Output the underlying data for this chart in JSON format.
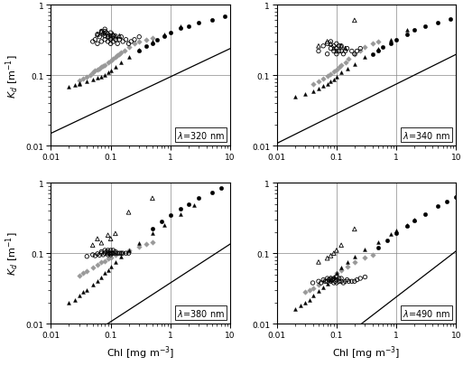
{
  "wavelengths": [
    "320",
    "340",
    "380",
    "490"
  ],
  "xlim": [
    0.01,
    10
  ],
  "ylim": [
    0.01,
    1
  ],
  "fit_params": {
    "320": {
      "a": 0.095,
      "b": 0.4
    },
    "340": {
      "a": 0.075,
      "b": 0.42
    },
    "380": {
      "a": 0.038,
      "b": 0.55
    },
    "490": {
      "a": 0.024,
      "b": 0.65
    }
  },
  "scatter": {
    "320": {
      "open_circles": {
        "x": [
          0.05,
          0.055,
          0.06,
          0.06,
          0.065,
          0.07,
          0.07,
          0.07,
          0.075,
          0.08,
          0.08,
          0.08,
          0.08,
          0.085,
          0.09,
          0.09,
          0.09,
          0.1,
          0.1,
          0.1,
          0.1,
          0.11,
          0.11,
          0.12,
          0.12,
          0.13,
          0.14,
          0.15,
          0.16,
          0.18,
          0.2,
          0.22,
          0.25,
          0.3
        ],
        "y": [
          0.3,
          0.32,
          0.28,
          0.38,
          0.35,
          0.3,
          0.4,
          0.42,
          0.38,
          0.32,
          0.36,
          0.42,
          0.45,
          0.4,
          0.3,
          0.35,
          0.38,
          0.28,
          0.32,
          0.36,
          0.4,
          0.3,
          0.36,
          0.32,
          0.36,
          0.28,
          0.32,
          0.35,
          0.3,
          0.32,
          0.28,
          0.3,
          0.32,
          0.35
        ]
      },
      "open_triangles": {
        "x": [
          0.06,
          0.07,
          0.08,
          0.09,
          0.1,
          0.11,
          0.12,
          0.14
        ],
        "y": [
          0.38,
          0.42,
          0.4,
          0.36,
          0.34,
          0.38,
          0.35,
          0.36
        ]
      },
      "gray_diamonds": {
        "x": [
          0.03,
          0.035,
          0.04,
          0.045,
          0.05,
          0.055,
          0.06,
          0.065,
          0.07,
          0.075,
          0.08,
          0.09,
          0.1,
          0.11,
          0.12,
          0.13,
          0.14,
          0.15,
          0.17,
          0.2,
          0.25,
          0.3,
          0.4,
          0.5
        ],
        "y": [
          0.085,
          0.09,
          0.095,
          0.1,
          0.11,
          0.115,
          0.12,
          0.125,
          0.13,
          0.135,
          0.14,
          0.15,
          0.16,
          0.17,
          0.18,
          0.19,
          0.2,
          0.21,
          0.225,
          0.25,
          0.28,
          0.3,
          0.32,
          0.34
        ]
      },
      "filled_triangles": {
        "x": [
          0.02,
          0.025,
          0.03,
          0.03,
          0.04,
          0.05,
          0.06,
          0.07,
          0.08,
          0.09,
          0.1,
          0.12,
          0.15,
          0.2,
          0.3,
          0.5,
          0.8,
          1.5
        ],
        "y": [
          0.068,
          0.072,
          0.075,
          0.078,
          0.082,
          0.088,
          0.092,
          0.095,
          0.1,
          0.11,
          0.115,
          0.13,
          0.15,
          0.18,
          0.23,
          0.3,
          0.38,
          0.5
        ]
      },
      "filled_circles": {
        "x": [
          0.3,
          0.4,
          0.5,
          0.6,
          0.8,
          1.0,
          1.5,
          2.0,
          3.0,
          5.0,
          8.0
        ],
        "y": [
          0.22,
          0.26,
          0.28,
          0.32,
          0.36,
          0.4,
          0.46,
          0.5,
          0.55,
          0.6,
          0.68
        ]
      }
    },
    "340": {
      "open_circles": {
        "x": [
          0.05,
          0.06,
          0.07,
          0.07,
          0.08,
          0.08,
          0.09,
          0.09,
          0.1,
          0.1,
          0.1,
          0.11,
          0.11,
          0.12,
          0.12,
          0.13,
          0.14,
          0.15,
          0.18,
          0.2,
          0.22,
          0.25
        ],
        "y": [
          0.22,
          0.26,
          0.2,
          0.28,
          0.24,
          0.3,
          0.22,
          0.26,
          0.2,
          0.24,
          0.28,
          0.22,
          0.26,
          0.22,
          0.26,
          0.2,
          0.22,
          0.24,
          0.22,
          0.2,
          0.22,
          0.24
        ]
      },
      "open_triangles": {
        "x": [
          0.05,
          0.07,
          0.08,
          0.09,
          0.1,
          0.12,
          0.14,
          0.2
        ],
        "y": [
          0.26,
          0.3,
          0.28,
          0.24,
          0.22,
          0.26,
          0.24,
          0.6
        ]
      },
      "gray_diamonds": {
        "x": [
          0.04,
          0.05,
          0.06,
          0.07,
          0.08,
          0.09,
          0.1,
          0.11,
          0.12,
          0.14,
          0.16,
          0.2,
          0.25,
          0.3,
          0.4,
          0.5
        ],
        "y": [
          0.075,
          0.082,
          0.09,
          0.098,
          0.105,
          0.112,
          0.12,
          0.13,
          0.14,
          0.15,
          0.17,
          0.2,
          0.22,
          0.25,
          0.28,
          0.3
        ]
      },
      "filled_triangles": {
        "x": [
          0.02,
          0.03,
          0.04,
          0.05,
          0.06,
          0.07,
          0.08,
          0.09,
          0.1,
          0.12,
          0.15,
          0.2,
          0.3,
          0.5,
          0.8,
          1.5
        ],
        "y": [
          0.05,
          0.055,
          0.06,
          0.065,
          0.07,
          0.075,
          0.082,
          0.088,
          0.095,
          0.11,
          0.125,
          0.145,
          0.18,
          0.24,
          0.32,
          0.44
        ]
      },
      "filled_circles": {
        "x": [
          0.4,
          0.5,
          0.6,
          0.8,
          1.0,
          1.5,
          2.0,
          3.0,
          5.0,
          8.0
        ],
        "y": [
          0.2,
          0.22,
          0.25,
          0.28,
          0.32,
          0.38,
          0.44,
          0.5,
          0.56,
          0.62
        ]
      }
    },
    "380": {
      "open_circles": {
        "x": [
          0.04,
          0.05,
          0.055,
          0.06,
          0.065,
          0.07,
          0.07,
          0.075,
          0.08,
          0.08,
          0.085,
          0.09,
          0.09,
          0.09,
          0.095,
          0.1,
          0.1,
          0.1,
          0.105,
          0.11,
          0.11,
          0.12,
          0.12,
          0.13,
          0.14,
          0.15,
          0.16,
          0.18,
          0.2
        ],
        "y": [
          0.09,
          0.095,
          0.092,
          0.098,
          0.094,
          0.1,
          0.105,
          0.095,
          0.1,
          0.11,
          0.105,
          0.095,
          0.1,
          0.11,
          0.1,
          0.095,
          0.1,
          0.11,
          0.1,
          0.1,
          0.11,
          0.1,
          0.105,
          0.1,
          0.1,
          0.1,
          0.1,
          0.1,
          0.1
        ]
      },
      "open_triangles": {
        "x": [
          0.05,
          0.06,
          0.07,
          0.09,
          0.1,
          0.12,
          0.2,
          0.5
        ],
        "y": [
          0.13,
          0.16,
          0.14,
          0.18,
          0.16,
          0.19,
          0.38,
          0.6
        ]
      },
      "gray_diamonds": {
        "x": [
          0.03,
          0.035,
          0.04,
          0.05,
          0.06,
          0.07,
          0.08,
          0.09,
          0.1,
          0.12,
          0.15,
          0.2,
          0.3,
          0.4,
          0.5
        ],
        "y": [
          0.048,
          0.052,
          0.056,
          0.062,
          0.068,
          0.074,
          0.078,
          0.083,
          0.088,
          0.095,
          0.1,
          0.11,
          0.125,
          0.135,
          0.145
        ]
      },
      "filled_triangles": {
        "x": [
          0.02,
          0.025,
          0.03,
          0.035,
          0.04,
          0.05,
          0.06,
          0.07,
          0.08,
          0.09,
          0.1,
          0.12,
          0.15,
          0.2,
          0.3,
          0.5,
          0.8,
          1.5,
          2.5
        ],
        "y": [
          0.02,
          0.022,
          0.025,
          0.028,
          0.03,
          0.036,
          0.04,
          0.046,
          0.052,
          0.058,
          0.064,
          0.075,
          0.09,
          0.11,
          0.14,
          0.19,
          0.25,
          0.36,
          0.48
        ]
      },
      "filled_circles": {
        "x": [
          0.5,
          0.7,
          1.0,
          1.5,
          2.0,
          3.0,
          5.0,
          7.0
        ],
        "y": [
          0.22,
          0.28,
          0.35,
          0.42,
          0.5,
          0.6,
          0.72,
          0.85
        ]
      }
    },
    "490": {
      "open_circles": {
        "x": [
          0.04,
          0.05,
          0.055,
          0.06,
          0.065,
          0.07,
          0.07,
          0.075,
          0.08,
          0.08,
          0.085,
          0.09,
          0.09,
          0.095,
          0.1,
          0.1,
          0.1,
          0.11,
          0.11,
          0.12,
          0.12,
          0.13,
          0.14,
          0.15,
          0.16,
          0.18,
          0.2,
          0.22,
          0.25,
          0.3
        ],
        "y": [
          0.038,
          0.04,
          0.038,
          0.042,
          0.04,
          0.044,
          0.04,
          0.042,
          0.04,
          0.044,
          0.042,
          0.038,
          0.044,
          0.04,
          0.038,
          0.042,
          0.046,
          0.04,
          0.044,
          0.04,
          0.044,
          0.038,
          0.04,
          0.042,
          0.04,
          0.04,
          0.04,
          0.042,
          0.044,
          0.046
        ]
      },
      "open_triangles": {
        "x": [
          0.05,
          0.07,
          0.08,
          0.09,
          0.1,
          0.12,
          0.2
        ],
        "y": [
          0.075,
          0.085,
          0.092,
          0.1,
          0.11,
          0.13,
          0.22
        ]
      },
      "gray_diamonds": {
        "x": [
          0.03,
          0.035,
          0.04,
          0.05,
          0.06,
          0.07,
          0.08,
          0.1,
          0.12,
          0.15,
          0.2,
          0.3,
          0.4
        ],
        "y": [
          0.028,
          0.03,
          0.032,
          0.036,
          0.04,
          0.043,
          0.046,
          0.052,
          0.058,
          0.065,
          0.074,
          0.086,
          0.095
        ]
      },
      "filled_triangles": {
        "x": [
          0.02,
          0.025,
          0.03,
          0.035,
          0.04,
          0.05,
          0.06,
          0.07,
          0.08,
          0.09,
          0.1,
          0.12,
          0.15,
          0.2,
          0.3,
          0.5,
          0.8,
          1.0,
          1.5,
          2.0
        ],
        "y": [
          0.016,
          0.018,
          0.02,
          0.022,
          0.025,
          0.029,
          0.033,
          0.037,
          0.042,
          0.047,
          0.052,
          0.062,
          0.074,
          0.09,
          0.112,
          0.145,
          0.185,
          0.21,
          0.25,
          0.3
        ]
      },
      "filled_circles": {
        "x": [
          0.5,
          0.7,
          1.0,
          1.5,
          2.0,
          3.0,
          5.0,
          7.0,
          10.0
        ],
        "y": [
          0.12,
          0.15,
          0.19,
          0.24,
          0.29,
          0.36,
          0.46,
          0.54,
          0.62
        ]
      }
    }
  }
}
